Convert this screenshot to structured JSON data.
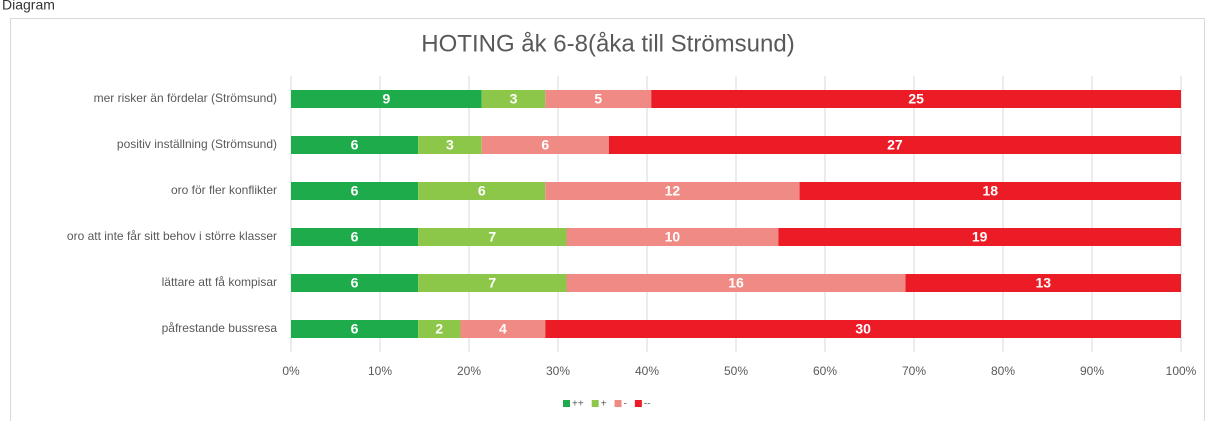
{
  "caption": "Diagram",
  "chart_data": {
    "type": "bar",
    "orientation": "horizontal",
    "stacking": "percent",
    "title": "HOTING åk 6-8(åka till Strömsund)",
    "categories": [
      "mer risker än fördelar (Strömsund)",
      "positiv inställning  (Strömsund)",
      "oro för fler konflikter",
      "oro att inte får sitt behov i större klasser",
      "lättare att få kompisar",
      "påfrestande bussresa"
    ],
    "series": [
      {
        "name": "++",
        "color": "#1eab4c",
        "values": [
          9,
          6,
          6,
          6,
          6,
          6
        ]
      },
      {
        "name": "+",
        "color": "#8dc749",
        "values": [
          3,
          3,
          6,
          7,
          7,
          2
        ]
      },
      {
        "name": "-",
        "color": "#f08a84",
        "values": [
          5,
          6,
          12,
          10,
          16,
          4
        ]
      },
      {
        "name": "--",
        "color": "#ec1c27",
        "values": [
          25,
          27,
          18,
          19,
          13,
          30
        ]
      }
    ],
    "xlim": [
      0,
      100
    ],
    "xticks": [
      {
        "value": 0,
        "label": "0%"
      },
      {
        "value": 10,
        "label": "10%"
      },
      {
        "value": 20,
        "label": "20%"
      },
      {
        "value": 30,
        "label": "30%"
      },
      {
        "value": 40,
        "label": "40%"
      },
      {
        "value": 50,
        "label": "50%"
      },
      {
        "value": 60,
        "label": "60%"
      },
      {
        "value": 70,
        "label": "70%"
      },
      {
        "value": 80,
        "label": "80%"
      },
      {
        "value": 90,
        "label": "90%"
      },
      {
        "value": 100,
        "label": "100%"
      }
    ],
    "grid": true,
    "legend": "bottom"
  }
}
